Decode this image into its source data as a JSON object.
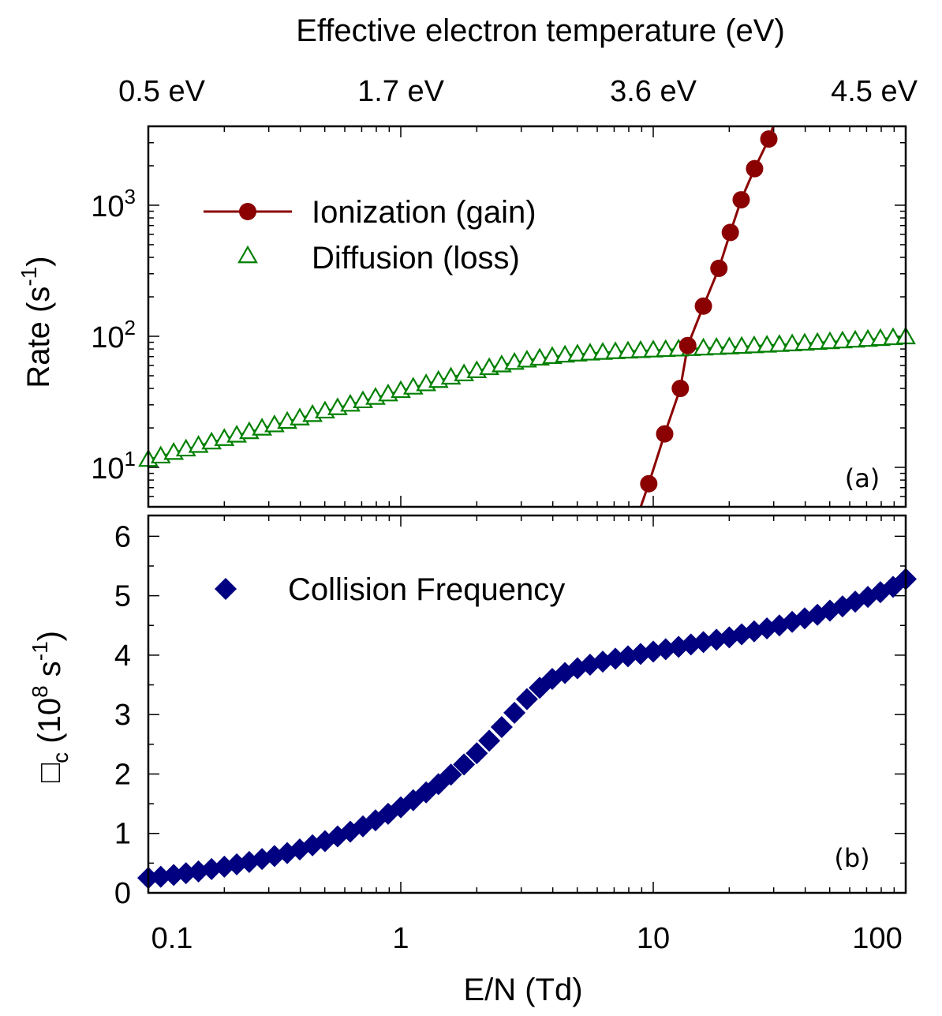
{
  "chart_data": [
    {
      "panel_label": "(a)",
      "type": "scatter",
      "top_axis": {
        "title": "Effective electron temperature (eV)",
        "labels": [
          {
            "text": "0.5 eV",
            "at_en": 0.1
          },
          {
            "text": "1.7 eV",
            "at_en": 1
          },
          {
            "text": "3.6 eV",
            "at_en": 10
          },
          {
            "text": "4.5 eV",
            "at_en": 100
          }
        ]
      },
      "xscale": "log",
      "xlim": [
        0.1,
        100
      ],
      "yscale": "log",
      "ylim": [
        5,
        4000
      ],
      "ylabel": {
        "base": "Rate (s",
        "sup": "-1",
        "end": ")"
      },
      "yticks": [
        {
          "base": "10",
          "sup": "1",
          "value": 10
        },
        {
          "base": "10",
          "sup": "2",
          "value": 100
        },
        {
          "base": "10",
          "sup": "3",
          "value": 1000
        }
      ],
      "legend_position": "upper-left",
      "series": [
        {
          "name": "Ionization (gain)",
          "color": "#8b0000",
          "marker": "filled-circle",
          "line": true,
          "x": [
            9.6,
            11.1,
            12.8,
            13.7,
            15.8,
            18.2,
            20.2,
            22.3,
            25.2,
            28.7
          ],
          "y": [
            7.5,
            18,
            40,
            85,
            170,
            330,
            620,
            1100,
            1900,
            3200
          ]
        },
        {
          "name": "Diffusion (loss)",
          "color": "#008000",
          "marker": "open-triangle",
          "line": true,
          "x": [
            0.1,
            0.112,
            0.126,
            0.141,
            0.158,
            0.178,
            0.2,
            0.224,
            0.251,
            0.282,
            0.316,
            0.355,
            0.398,
            0.447,
            0.501,
            0.562,
            0.631,
            0.708,
            0.794,
            0.891,
            1.0,
            1.12,
            1.26,
            1.41,
            1.58,
            1.78,
            2.0,
            2.24,
            2.51,
            2.82,
            3.16,
            3.55,
            3.98,
            4.47,
            5.01,
            5.62,
            6.31,
            7.08,
            7.94,
            8.91,
            10.0,
            11.2,
            12.6,
            14.1,
            15.8,
            17.8,
            20.0,
            22.4,
            25.1,
            28.2,
            31.6,
            35.5,
            39.8,
            44.7,
            50.1,
            56.2,
            63.1,
            70.8,
            79.4,
            89.1,
            100
          ],
          "y": [
            11.5,
            12.2,
            13,
            13.8,
            14.7,
            15.6,
            16.6,
            17.6,
            18.7,
            19.9,
            21.1,
            22.4,
            23.8,
            25.3,
            26.9,
            28.5,
            30.3,
            32.2,
            34.2,
            36.3,
            38.5,
            40.9,
            43.4,
            46,
            48.8,
            51.7,
            54.6,
            57.6,
            60.5,
            63.2,
            65.8,
            68.1,
            70.1,
            71.8,
            73.2,
            74.4,
            75.4,
            76.3,
            77.1,
            77.8,
            78.5,
            79.2,
            79.9,
            80.6,
            81.3,
            82.1,
            82.9,
            83.7,
            84.6,
            85.5,
            86.5,
            87.5,
            88.6,
            89.7,
            90.9,
            92.1,
            93.4,
            94.7,
            96.1,
            97.5,
            99
          ]
        }
      ]
    },
    {
      "panel_label": "(b)",
      "type": "scatter",
      "xscale": "log",
      "xlim": [
        0.1,
        100
      ],
      "xlabel": "E/N (Td)",
      "xticks": [
        {
          "text": "0.1",
          "value": 0.1
        },
        {
          "text": "1",
          "value": 1
        },
        {
          "text": "10",
          "value": 10
        },
        {
          "text": "100",
          "value": 100
        }
      ],
      "yscale": "linear",
      "ylim": [
        0,
        6.35
      ],
      "ylabel": {
        "sym": "□",
        "sub": "c",
        "mid": " (10",
        "sup1": "8",
        "mid2": " s",
        "sup2": "-1",
        "end": ")"
      },
      "yticks": [
        "0",
        "1",
        "2",
        "3",
        "4",
        "5",
        "6"
      ],
      "legend_position": "upper-left",
      "series": [
        {
          "name": "Collision Frequency",
          "color": "#000080",
          "marker": "filled-diamond",
          "x": [
            0.1,
            0.112,
            0.126,
            0.141,
            0.158,
            0.178,
            0.2,
            0.224,
            0.251,
            0.282,
            0.316,
            0.355,
            0.398,
            0.447,
            0.501,
            0.562,
            0.631,
            0.708,
            0.794,
            0.891,
            1.0,
            1.12,
            1.26,
            1.41,
            1.58,
            1.78,
            2.0,
            2.24,
            2.51,
            2.82,
            3.16,
            3.55,
            3.98,
            4.47,
            5.01,
            5.62,
            6.31,
            7.08,
            7.94,
            8.91,
            10.0,
            11.2,
            12.6,
            14.1,
            15.8,
            17.8,
            20.0,
            22.4,
            25.1,
            28.2,
            31.6,
            35.5,
            39.8,
            44.7,
            50.1,
            56.2,
            63.1,
            70.8,
            79.4,
            89.1,
            100
          ],
          "y": [
            0.25,
            0.27,
            0.3,
            0.33,
            0.36,
            0.4,
            0.44,
            0.48,
            0.52,
            0.57,
            0.62,
            0.67,
            0.73,
            0.8,
            0.87,
            0.95,
            1.03,
            1.12,
            1.22,
            1.33,
            1.44,
            1.56,
            1.69,
            1.83,
            1.99,
            2.16,
            2.35,
            2.56,
            2.79,
            3.03,
            3.26,
            3.45,
            3.6,
            3.7,
            3.78,
            3.84,
            3.89,
            3.94,
            3.98,
            4.02,
            4.06,
            4.1,
            4.14,
            4.18,
            4.22,
            4.26,
            4.3,
            4.35,
            4.4,
            4.45,
            4.5,
            4.56,
            4.62,
            4.68,
            4.75,
            4.82,
            4.9,
            4.98,
            5.06,
            5.15,
            5.28
          ]
        }
      ]
    }
  ]
}
